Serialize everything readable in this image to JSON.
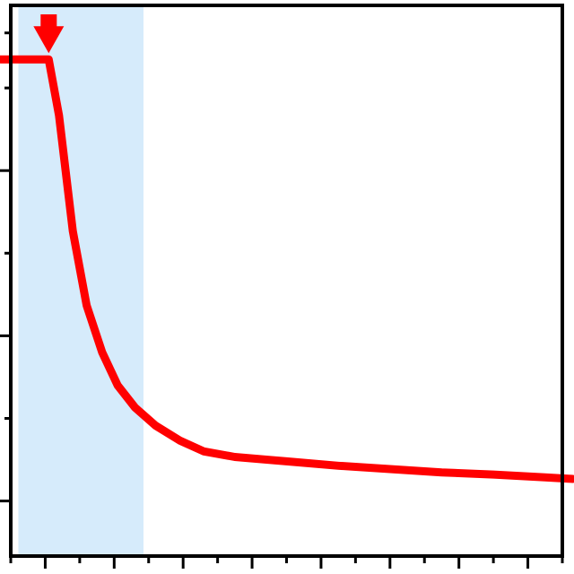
{
  "chart_data": {
    "type": "line",
    "title": "",
    "xlabel": "",
    "ylabel": "",
    "xlim": [
      0,
      16
    ],
    "ylim": [
      0,
      1
    ],
    "x_ticks_major": [
      1,
      3,
      5,
      7,
      9,
      11,
      13,
      15
    ],
    "x_ticks_minor": [
      0,
      2,
      4,
      6,
      8,
      10,
      12,
      14,
      16
    ],
    "y_ticks_major": [
      0.1,
      0.4,
      0.7
    ],
    "y_ticks_minor": [
      0.25,
      0.55,
      0.85,
      0.95
    ],
    "grid": false,
    "shaded_region": {
      "x_start": 0.22,
      "x_end": 3.85,
      "color": "#d6ebfb"
    },
    "marker_arrow": {
      "x": 1.1,
      "color": "#ff0000"
    },
    "series": [
      {
        "color": "#ff0000",
        "x": [
          -0.3,
          1.1,
          1.4,
          1.8,
          2.2,
          2.65,
          3.1,
          3.6,
          4.2,
          4.9,
          5.6,
          6.5,
          8.0,
          9.5,
          11.0,
          12.5,
          14.0,
          15.5,
          16.3
        ],
        "y": [
          0.902,
          0.902,
          0.8,
          0.59,
          0.455,
          0.37,
          0.31,
          0.27,
          0.237,
          0.21,
          0.19,
          0.18,
          0.172,
          0.164,
          0.158,
          0.152,
          0.148,
          0.143,
          0.14
        ]
      }
    ]
  }
}
